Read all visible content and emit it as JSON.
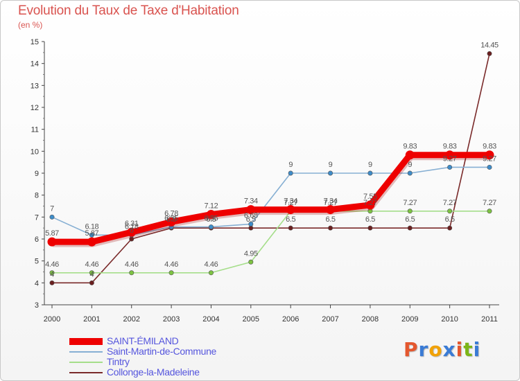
{
  "header": {
    "title": "Evolution du Taux de Taxe d'Habitation",
    "subtitle": "(en %)"
  },
  "logo": {
    "text": "Proxiti",
    "colors": [
      "#e4572e",
      "#3a7bd5",
      "#f1a208",
      "#3a7bd5",
      "#e4572e",
      "#7cb518",
      "#3a7bd5"
    ]
  },
  "chart_data": {
    "type": "line",
    "title": "Evolution du Taux de Taxe d'Habitation",
    "ylabel": "(en %)",
    "xlabel": "",
    "ylim": [
      3,
      15
    ],
    "yticks": [
      3,
      4,
      5,
      6,
      7,
      8,
      9,
      10,
      11,
      12,
      13,
      14,
      15
    ],
    "grid": false,
    "legend_position": "bottom-left",
    "x": [
      "2000",
      "2001",
      "2002",
      "2003",
      "2004",
      "2005",
      "2006",
      "2007",
      "2008",
      "2009",
      "2010",
      "2011"
    ],
    "series": [
      {
        "name": "Collonge-la-Madeleine",
        "color": "#7a2a2a",
        "dot": "#6b1f1f",
        "weight": "thin",
        "values": [
          4,
          4,
          6,
          6.5,
          6.5,
          6.5,
          6.5,
          6.5,
          6.5,
          6.5,
          6.5,
          14.45
        ],
        "labels": [
          "4",
          "4",
          "6",
          "6.5",
          "6.5",
          "6.5",
          "6.5",
          "6.5",
          "6.5",
          "6.5",
          "6.5",
          "14.45"
        ]
      },
      {
        "name": "Tintry",
        "color": "#a5de8a",
        "dot": "#7dc242",
        "weight": "thin",
        "values": [
          4.46,
          4.46,
          4.46,
          4.46,
          4.46,
          4.95,
          7.27,
          7.27,
          7.27,
          7.27,
          7.27,
          7.27
        ],
        "labels": [
          "4.46",
          "4.46",
          "4.46",
          "4.46",
          "4.46",
          "4.95",
          "7.27",
          "7.27",
          "7.27",
          "7.27",
          "7.27",
          "7.27"
        ]
      },
      {
        "name": "Saint-Martin-de-Commune",
        "color": "#86afd3",
        "dot": "#3d8cc9",
        "weight": "thin",
        "values": [
          7,
          6.18,
          6.18,
          6.55,
          6.55,
          6.68,
          9,
          9,
          9,
          9,
          9.27,
          9.27
        ],
        "labels": [
          "7",
          "6.18",
          "6.18",
          "6.55",
          "6.55",
          "6.68",
          "9",
          "9",
          "9",
          "9",
          "9.27",
          "9.27"
        ]
      },
      {
        "name": "SAINT-ÉMILAND",
        "color": "#ee0000",
        "dot": "#ee0000",
        "weight": "thick",
        "values": [
          5.87,
          5.87,
          6.31,
          6.78,
          7.12,
          7.34,
          7.34,
          7.34,
          7.55,
          9.83,
          9.83,
          9.83
        ],
        "labels": [
          "5.87",
          "5.87",
          "6.31",
          "6.78",
          "7.12",
          "7.34",
          "7.34",
          "7.34",
          "7.55",
          "9.83",
          "9.83",
          "9.83"
        ]
      }
    ],
    "legend": [
      "SAINT-ÉMILAND",
      "Saint-Martin-de-Commune",
      "Tintry",
      "Collonge-la-Madeleine"
    ]
  }
}
